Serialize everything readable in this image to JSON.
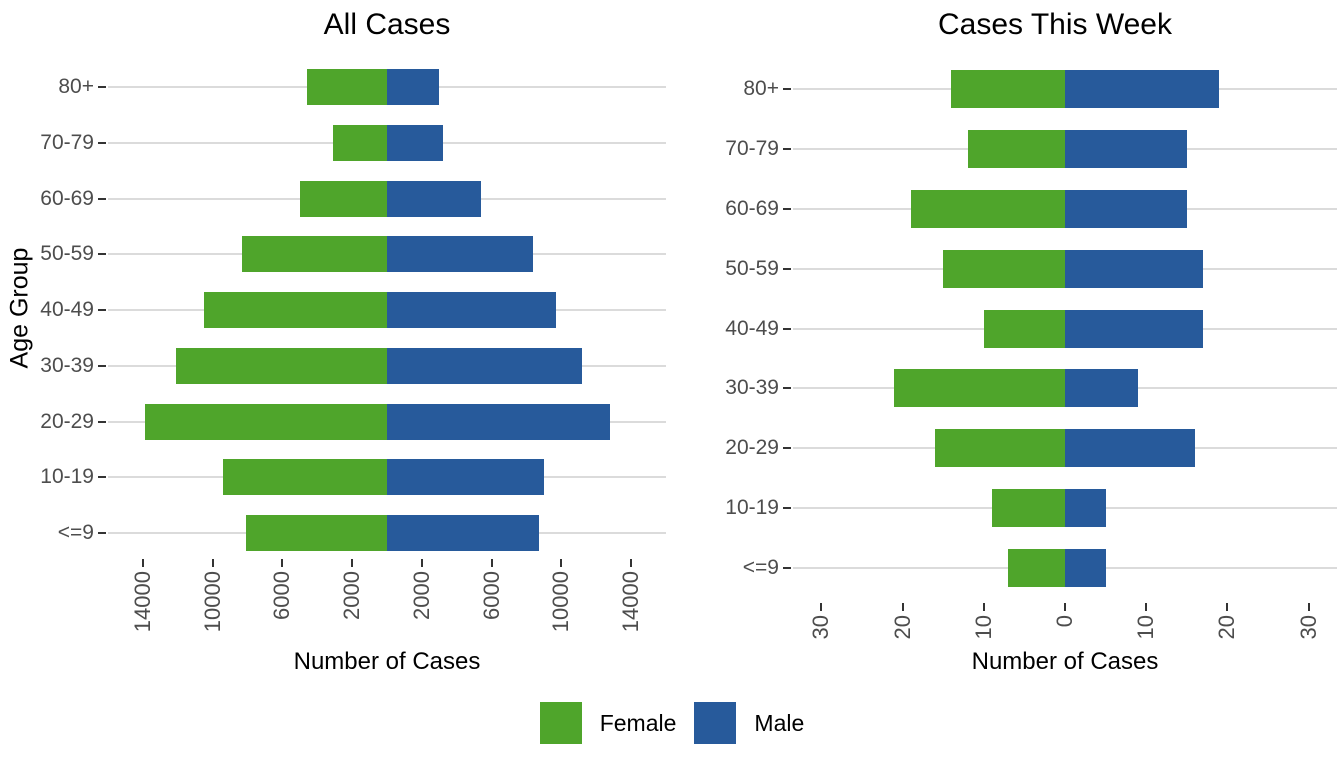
{
  "page": {
    "background": "#ffffff"
  },
  "colors": {
    "female": "#4fa52b",
    "male": "#275a9b",
    "gridline": "#dbdbdb",
    "tick_mark": "#333333",
    "tick_label": "#4d4d4d",
    "title_text": "#000000"
  },
  "legend": {
    "items": [
      {
        "label": "Female",
        "color": "#4fa52b"
      },
      {
        "label": "Male",
        "color": "#275a9b"
      }
    ]
  },
  "chart_data": [
    {
      "type": "bar",
      "subtype": "diverging-population-pyramid",
      "title": "All Cases",
      "xlabel": "Number of Cases",
      "ylabel": "Age Group",
      "categories": [
        "80+",
        "70-79",
        "60-69",
        "50-59",
        "40-49",
        "30-39",
        "20-29",
        "10-19",
        "<=9"
      ],
      "series": [
        {
          "name": "Female",
          "side": "left",
          "values": [
            4600,
            3100,
            5000,
            8300,
            10500,
            12100,
            13900,
            9400,
            8100
          ]
        },
        {
          "name": "Male",
          "side": "right",
          "values": [
            3000,
            3200,
            5400,
            8400,
            9700,
            11200,
            12800,
            9000,
            8700
          ]
        }
      ],
      "x_ticks": [
        -14000,
        -10000,
        -6000,
        -2000,
        2000,
        6000,
        10000,
        14000
      ],
      "x_tick_labels": [
        "14000",
        "10000",
        "6000",
        "2000",
        "2000",
        "6000",
        "10000",
        "14000"
      ],
      "xlim": [
        -16000,
        16000
      ],
      "grid": "horizontal row gridlines only",
      "legend_position": "bottom-shared"
    },
    {
      "type": "bar",
      "subtype": "diverging-population-pyramid",
      "title": "Cases This Week",
      "xlabel": "Number of Cases",
      "ylabel": "",
      "categories": [
        "80+",
        "70-79",
        "60-69",
        "50-59",
        "40-49",
        "30-39",
        "20-29",
        "10-19",
        "<=9"
      ],
      "series": [
        {
          "name": "Female",
          "side": "left",
          "values": [
            14,
            12,
            19,
            15,
            10,
            21,
            16,
            9,
            7
          ]
        },
        {
          "name": "Male",
          "side": "right",
          "values": [
            19,
            15,
            15,
            17,
            17,
            9,
            16,
            5,
            5
          ]
        }
      ],
      "x_ticks": [
        -30,
        -20,
        -10,
        0,
        10,
        20,
        30
      ],
      "x_tick_labels": [
        "30",
        "20",
        "10",
        "0",
        "10",
        "20",
        "30"
      ],
      "xlim": [
        -33.5,
        33.5
      ],
      "grid": "horizontal row gridlines only",
      "legend_position": "bottom-shared"
    }
  ]
}
